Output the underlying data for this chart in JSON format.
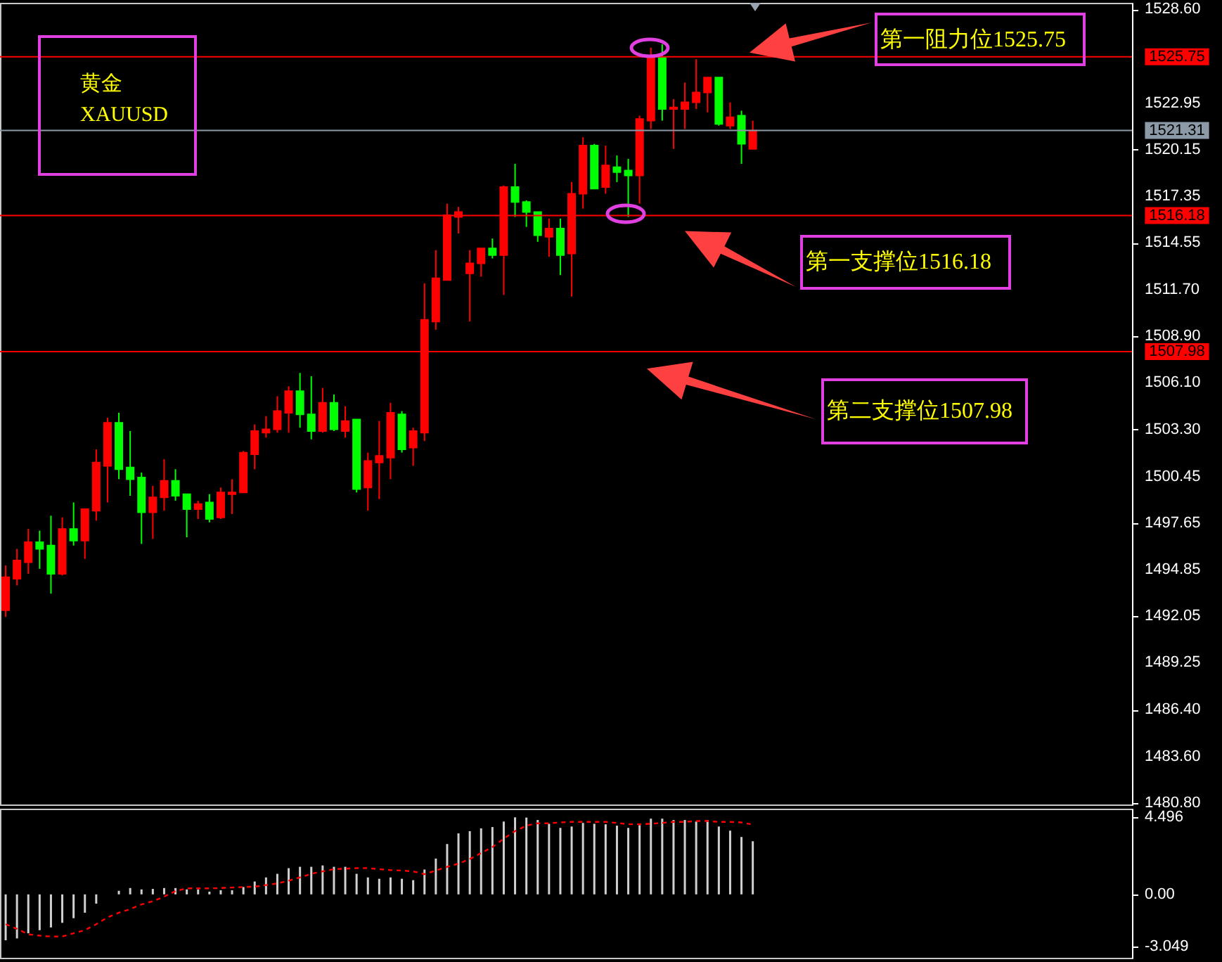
{
  "chart_data": [
    {
      "type": "candlestick",
      "title": "黄金",
      "subtitle": "XAUUSD",
      "categories": [
        null,
        null,
        null,
        null,
        null,
        null,
        null,
        null,
        null,
        null,
        null,
        null,
        null,
        null,
        null,
        null,
        null,
        null,
        null,
        null,
        null,
        null,
        null,
        null,
        null,
        null,
        null,
        null,
        null,
        null,
        null,
        null,
        null,
        null,
        null,
        null,
        null,
        null,
        null,
        null,
        null,
        null,
        null,
        null,
        null,
        null,
        null,
        null,
        null,
        null,
        null,
        null,
        null,
        null,
        null,
        null,
        null,
        null,
        null,
        null,
        null,
        null,
        null,
        null,
        null,
        null,
        null,
        null,
        null,
        null,
        null,
        null,
        null,
        null,
        null,
        null,
        null,
        null,
        null,
        null,
        null,
        null,
        null,
        null,
        null,
        null,
        null,
        null,
        null,
        null,
        null,
        null,
        null,
        null,
        null,
        null,
        null,
        null,
        null,
        null
      ],
      "ohlc": [
        [
          1492.4,
          1495.1,
          1492.0,
          1494.4
        ],
        [
          1494.3,
          1496.1,
          1493.9,
          1495.4
        ],
        [
          1495.3,
          1497.3,
          1494.6,
          1496.5
        ],
        [
          1496.5,
          1497.2,
          1494.9,
          1496.1
        ],
        [
          1496.3,
          1498.1,
          1493.4,
          1494.6
        ],
        [
          1494.6,
          1498.0,
          1494.5,
          1497.3
        ],
        [
          1497.3,
          1498.9,
          1496.3,
          1496.6
        ],
        [
          1496.6,
          1498.5,
          1495.5,
          1498.5
        ],
        [
          1498.4,
          1502.1,
          1497.8,
          1501.3
        ],
        [
          1501.1,
          1504.0,
          1498.9,
          1503.7
        ],
        [
          1503.7,
          1504.3,
          1500.3,
          1500.9
        ],
        [
          1501.0,
          1503.2,
          1499.3,
          1500.3
        ],
        [
          1500.4,
          1500.7,
          1496.4,
          1498.3
        ],
        [
          1498.3,
          1499.9,
          1496.7,
          1499.2
        ],
        [
          1499.2,
          1501.5,
          1498.4,
          1500.2
        ],
        [
          1500.2,
          1500.9,
          1499.0,
          1499.3
        ],
        [
          1499.4,
          1499.4,
          1496.8,
          1498.5
        ],
        [
          1498.5,
          1499.0,
          1497.9,
          1498.8
        ],
        [
          1498.9,
          1499.4,
          1497.7,
          1497.9
        ],
        [
          1498.0,
          1499.8,
          1497.9,
          1499.5
        ],
        [
          1499.4,
          1500.3,
          1498.2,
          1499.5
        ],
        [
          1499.5,
          1502.0,
          1499.5,
          1501.9
        ],
        [
          1501.8,
          1503.6,
          1500.9,
          1503.2
        ],
        [
          1503.1,
          1504.1,
          1502.8,
          1503.3
        ],
        [
          1503.3,
          1505.3,
          1503.1,
          1504.4
        ],
        [
          1504.3,
          1505.9,
          1503.1,
          1505.6
        ],
        [
          1505.6,
          1506.7,
          1503.4,
          1504.2
        ],
        [
          1504.2,
          1506.5,
          1502.7,
          1503.2
        ],
        [
          1503.2,
          1505.8,
          1503.1,
          1504.9
        ],
        [
          1504.9,
          1505.4,
          1503.2,
          1503.3
        ],
        [
          1503.2,
          1504.7,
          1502.8,
          1503.8
        ],
        [
          1503.9,
          1503.9,
          1499.5,
          1499.7
        ],
        [
          1499.8,
          1501.9,
          1498.4,
          1501.4
        ],
        [
          1501.3,
          1503.8,
          1499.1,
          1501.7
        ],
        [
          1501.6,
          1504.9,
          1500.3,
          1504.3
        ],
        [
          1504.2,
          1504.4,
          1501.9,
          1502.1
        ],
        [
          1502.2,
          1503.4,
          1501.1,
          1503.2
        ],
        [
          1503.1,
          1512.1,
          1502.6,
          1509.9
        ],
        [
          1509.8,
          1514.1,
          1509.3,
          1512.4
        ],
        [
          1512.3,
          1516.9,
          1512.3,
          1516.2
        ],
        [
          1516.1,
          1516.7,
          1515.1,
          1516.4
        ],
        [
          1512.7,
          1514.1,
          1509.8,
          1513.3
        ],
        [
          1513.3,
          1514.2,
          1512.5,
          1514.2
        ],
        [
          1514.2,
          1514.8,
          1513.6,
          1513.8
        ],
        [
          1513.8,
          1518.0,
          1511.4,
          1517.9
        ],
        [
          1517.9,
          1519.3,
          1516.1,
          1517.0
        ],
        [
          1517.0,
          1517.1,
          1515.5,
          1516.4
        ],
        [
          1516.4,
          1516.4,
          1514.6,
          1515.0
        ],
        [
          1514.9,
          1516.0,
          1513.7,
          1515.4
        ],
        [
          1515.4,
          1516.0,
          1512.6,
          1513.8
        ],
        [
          1513.9,
          1518.2,
          1511.3,
          1517.5
        ],
        [
          1517.5,
          1520.9,
          1516.6,
          1520.4
        ],
        [
          1520.4,
          1520.5,
          1517.8,
          1517.8
        ],
        [
          1517.9,
          1520.4,
          1517.5,
          1519.2
        ],
        [
          1519.1,
          1519.8,
          1518.2,
          1518.8
        ],
        [
          1518.9,
          1519.6,
          1516.1,
          1518.6
        ],
        [
          1518.6,
          1522.2,
          1516.9,
          1522.0
        ],
        [
          1521.9,
          1526.3,
          1521.4,
          1525.7
        ],
        [
          1525.7,
          1526.5,
          1521.9,
          1522.6
        ],
        [
          1522.6,
          1523.2,
          1520.2,
          1522.7
        ],
        [
          1522.6,
          1524.2,
          1521.4,
          1523.0
        ],
        [
          1523.0,
          1525.6,
          1522.6,
          1523.6
        ],
        [
          1523.6,
          1524.5,
          1522.4,
          1524.5
        ],
        [
          1524.5,
          1524.5,
          1521.6,
          1521.7
        ],
        [
          1521.6,
          1523.0,
          1521.4,
          1522.1
        ],
        [
          1522.2,
          1522.5,
          1519.3,
          1520.5
        ],
        [
          1520.2,
          1521.9,
          1520.2,
          1521.3
        ],
        null,
        null,
        null,
        null,
        null,
        null,
        null,
        null,
        null,
        null,
        null,
        null,
        null,
        null,
        null,
        null,
        null,
        null,
        null,
        null,
        null,
        null,
        null,
        null,
        null,
        null,
        null,
        null,
        null,
        null,
        null,
        null,
        null
      ],
      "colors": [
        "#ff0000",
        "#ff0000",
        "#ff0000",
        "#00ff00",
        "#00ff00",
        "#ff0000",
        "#00ff00",
        "#ff0000",
        "#ff0000",
        "#ff0000",
        "#00ff00",
        "#00ff00",
        "#00ff00",
        "#ff0000",
        "#ff0000",
        "#00ff00",
        "#00ff00",
        "#ff0000",
        "#00ff00",
        "#ff0000",
        "#ff0000",
        "#ff0000",
        "#ff0000",
        "#ff0000",
        "#ff0000",
        "#ff0000",
        "#00ff00",
        "#00ff00",
        "#ff0000",
        "#00ff00",
        "#ff0000",
        "#00ff00",
        "#ff0000",
        "#ff0000",
        "#ff0000",
        "#00ff00",
        "#ff0000",
        "#ff0000",
        "#ff0000",
        "#ff0000",
        "#ff0000",
        "#ff0000",
        "#ff0000",
        "#00ff00",
        "#ff0000",
        "#00ff00",
        "#00ff00",
        "#00ff00",
        "#ff0000",
        "#00ff00",
        "#ff0000",
        "#ff0000",
        "#00ff00",
        "#ff0000",
        "#00ff00",
        "#00ff00",
        "#ff0000",
        "#ff0000",
        "#00ff00",
        "#ff0000",
        "#ff0000",
        "#ff0000",
        "#ff0000",
        "#00ff00",
        "#ff0000",
        "#00ff00",
        "#ff0000",
        null,
        null,
        null,
        null,
        null,
        null,
        null,
        null,
        null,
        null,
        null,
        null,
        null,
        null,
        null,
        null,
        null,
        null,
        null,
        null,
        null,
        null,
        null,
        null,
        null,
        null,
        null,
        null,
        null,
        null,
        null,
        null,
        null
      ],
      "ylim": [
        1480.7,
        1529.0
      ],
      "yticks": [
        {
          "value": 1528.6,
          "label": "1528.60"
        },
        1522.95,
        1520.15,
        1517.35,
        1514.55,
        {
          "value": 1511.7,
          "label": "1511.70"
        },
        {
          "value": 1508.9,
          "label": "1508.90"
        },
        {
          "value": 1506.1,
          "label": "1506.10"
        },
        {
          "value": 1503.3,
          "label": "1503.30"
        },
        1500.45,
        1497.65,
        1494.85,
        1492.05,
        1489.25,
        {
          "value": 1486.4,
          "label": "1486.40"
        },
        {
          "value": 1483.6,
          "label": "1483.60"
        },
        {
          "value": 1480.8,
          "label": "1480.80"
        }
      ],
      "tick_labels": "y",
      "ref_lines": [
        {
          "axis": "y",
          "value": 1525.75,
          "label": "1525.75",
          "color": "#ff0000"
        },
        {
          "axis": "y",
          "value": 1521.31,
          "label": "1521.31",
          "color": "#8c9aa8"
        },
        {
          "axis": "y",
          "value": 1516.18,
          "label": "1516.18",
          "color": "#ff0000"
        },
        {
          "axis": "y",
          "value": 1507.98,
          "label": "1507.98",
          "color": "#ff0000"
        }
      ],
      "annotations": [
        {
          "text": "第一阻力位1525.75",
          "y": 1525.75
        },
        {
          "text": "第一支撑位1516.18",
          "y": 1516.18
        },
        {
          "text": "第二支撑位1507.98",
          "y": 1507.98
        }
      ]
    },
    {
      "type": "bar",
      "categories": [
        null,
        null,
        null,
        null,
        null,
        null,
        null,
        null,
        null,
        null,
        null,
        null,
        null,
        null,
        null,
        null,
        null,
        null,
        null,
        null,
        null,
        null,
        null,
        null,
        null,
        null,
        null,
        null,
        null,
        null,
        null,
        null,
        null,
        null,
        null,
        null,
        null,
        null,
        null,
        null,
        null,
        null,
        null,
        null,
        null,
        null,
        null,
        null,
        null,
        null,
        null,
        null,
        null,
        null,
        null,
        null,
        null,
        null,
        null,
        null,
        null,
        null,
        null,
        null,
        null,
        null,
        null,
        null,
        null,
        null,
        null,
        null,
        null,
        null,
        null,
        null,
        null,
        null,
        null,
        null,
        null,
        null,
        null,
        null,
        null,
        null,
        null,
        null,
        null,
        null,
        null,
        null,
        null,
        null,
        null,
        null,
        null,
        null,
        null,
        null
      ],
      "series": [
        {
          "type": "bar",
          "color": "#d0d0d0",
          "values": [
            -2.68,
            -2.57,
            -2.27,
            -2.09,
            -1.93,
            -1.66,
            -1.39,
            -1.07,
            -0.54,
            0,
            0.21,
            0.37,
            0.29,
            0.32,
            0.37,
            0.37,
            0.29,
            0.29,
            0.16,
            0.24,
            0.24,
            0.43,
            0.75,
            0.99,
            1.2,
            1.53,
            1.61,
            1.61,
            1.69,
            1.61,
            1.61,
            1.2,
            0.99,
            0.91,
            0.99,
            0.91,
            0.83,
            1.45,
            2.09,
            2.94,
            3.56,
            3.69,
            3.85,
            3.93,
            4.25,
            4.496,
            4.48,
            4.34,
            4.12,
            3.88,
            3.96,
            4.17,
            4.12,
            4.09,
            4.01,
            3.88,
            4.04,
            4.42,
            4.42,
            4.34,
            4.34,
            4.25,
            4.34,
            3.96,
            3.72,
            3.35,
            3.1,
            null,
            null,
            null,
            null,
            null,
            null,
            null,
            null,
            null,
            null,
            null,
            null,
            null,
            null,
            null,
            null,
            null,
            null,
            null,
            null,
            null,
            null,
            null,
            null,
            null,
            null,
            null,
            null,
            null,
            null,
            null,
            null,
            null
          ]
        },
        {
          "type": "line",
          "color": "#ff0000",
          "values": [
            -1.74,
            -2.01,
            -2.33,
            -2.41,
            -2.46,
            -2.46,
            -2.27,
            -2.09,
            -1.74,
            -1.34,
            -1.07,
            -0.86,
            -0.59,
            -0.4,
            -0.13,
            0.19,
            0.35,
            0.35,
            0.35,
            0.37,
            0.4,
            0.43,
            0.45,
            0.54,
            0.64,
            0.8,
            0.99,
            1.2,
            1.34,
            1.47,
            1.5,
            1.53,
            1.53,
            1.47,
            1.42,
            1.39,
            1.34,
            1.18,
            1.39,
            1.61,
            1.79,
            2.06,
            2.41,
            2.76,
            3.26,
            3.69,
            4.01,
            4.15,
            4.15,
            4.2,
            4.23,
            4.23,
            4.23,
            4.23,
            4.17,
            4.09,
            4.09,
            4.12,
            4.17,
            4.23,
            4.23,
            4.28,
            4.28,
            4.23,
            4.23,
            4.2,
            4.07,
            null,
            null,
            null,
            null,
            null,
            null,
            null,
            null,
            null,
            null,
            null,
            null,
            null,
            null,
            null,
            null,
            null,
            null,
            null,
            null,
            null,
            null,
            null,
            null,
            null,
            null,
            null,
            null,
            null,
            null,
            null,
            null,
            null
          ]
        }
      ],
      "line_style": "dashed",
      "ylim": [
        -3.7,
        5.0
      ],
      "yticks": [
        4.496,
        {
          "value": 0,
          "label": "0.00"
        },
        -3.049
      ],
      "tick_labels": "y"
    }
  ]
}
